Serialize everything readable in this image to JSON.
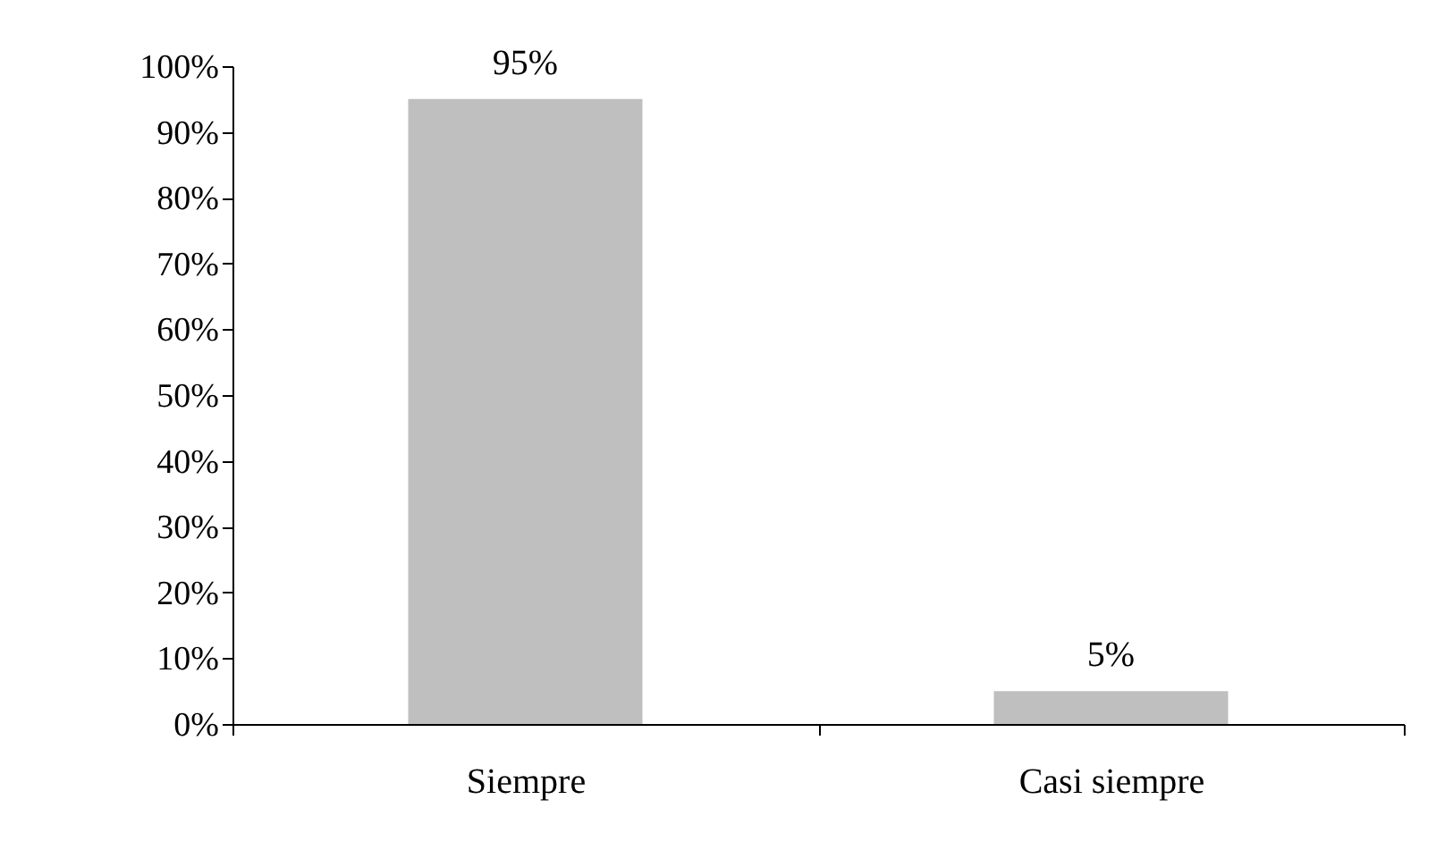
{
  "chart_data": {
    "type": "bar",
    "categories": [
      "Siempre",
      "Casi siempre"
    ],
    "values": [
      95,
      5
    ],
    "value_labels": [
      "95%",
      "5%"
    ],
    "color": "#bfbfbf",
    "ylim": [
      0,
      100
    ],
    "yticks": [
      {
        "value": 0,
        "label": "0%"
      },
      {
        "value": 10,
        "label": "10%"
      },
      {
        "value": 20,
        "label": "20%"
      },
      {
        "value": 30,
        "label": "30%"
      },
      {
        "value": 40,
        "label": "40%"
      },
      {
        "value": 50,
        "label": "50%"
      },
      {
        "value": 60,
        "label": "60%"
      },
      {
        "value": 70,
        "label": "70%"
      },
      {
        "value": 80,
        "label": "80%"
      },
      {
        "value": 90,
        "label": "90%"
      },
      {
        "value": 100,
        "label": "100%"
      }
    ],
    "grid": false
  }
}
